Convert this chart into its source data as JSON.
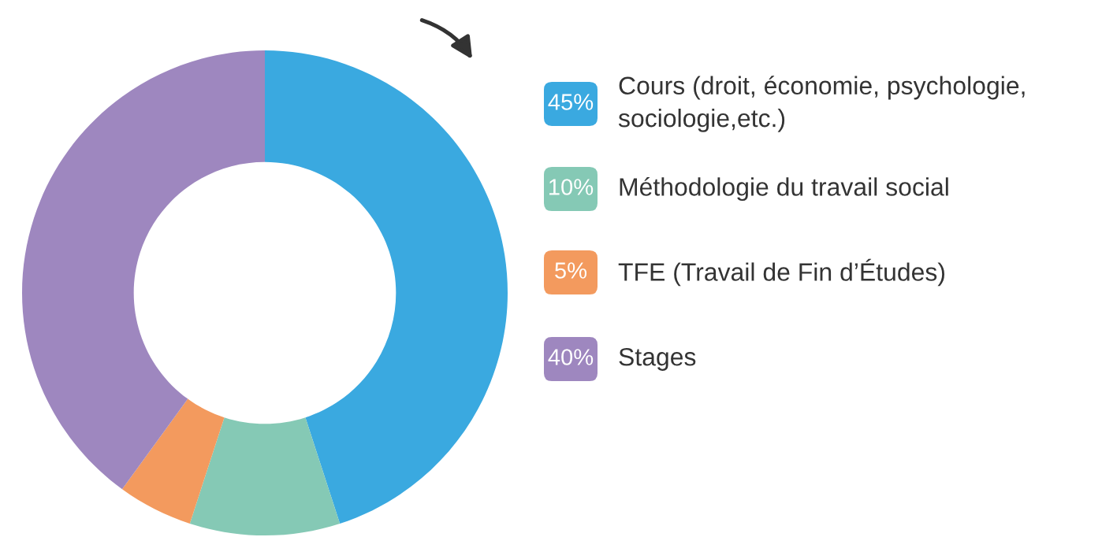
{
  "chart_data": {
    "type": "donut",
    "categories": [
      "Cours (droit, économie, psychologie,\nsociologie,etc.)",
      "Méthodologie du travail social",
      "TFE (Travail de Fin d’Études)",
      "Stages"
    ],
    "values": [
      45,
      10,
      5,
      40
    ],
    "value_labels": [
      "45%",
      "10%",
      "5%",
      "40%"
    ],
    "colors": [
      "#3aa9e0",
      "#85c9b5",
      "#f39a5e",
      "#9e87bf"
    ],
    "legend": "right"
  }
}
